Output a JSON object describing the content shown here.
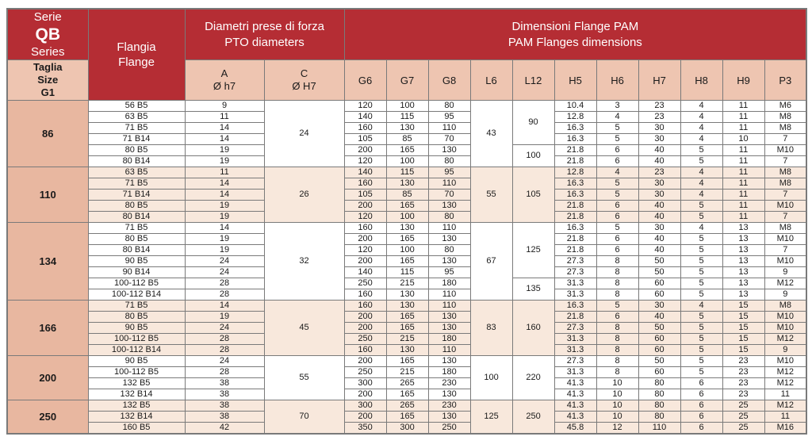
{
  "colors": {
    "red": "#b52d34",
    "pink_header": "#eec5b1",
    "pink_size": "#e8b7a0",
    "pink_row": "#f8e8dc",
    "border": "#7a7a7a",
    "text": "#1a1a1a"
  },
  "header": {
    "serie_label": "Serie",
    "serie_code": "QB",
    "series_label": "Series",
    "taglia_lines": [
      "Taglia",
      "Size",
      "G1"
    ],
    "flangia_lines": [
      "Flangia",
      "Flange"
    ],
    "pto_lines": [
      "Diametri prese di forza",
      "PTO diameters"
    ],
    "pam_lines": [
      "Dimensioni Flange PAM",
      "PAM Flanges dimensions"
    ],
    "col_a_lines": [
      "A",
      "Ø h7"
    ],
    "col_c_lines": [
      "C",
      "Ø H7"
    ],
    "dim_cols": [
      "G6",
      "G7",
      "G8",
      "L6",
      "L12",
      "H5",
      "H6",
      "H7",
      "H8",
      "H9",
      "P3"
    ]
  },
  "groups": [
    {
      "size": "86",
      "shaded": false,
      "c": "24",
      "l6": "43",
      "l12_spans": [
        {
          "value": "90",
          "rows": 4
        },
        {
          "value": "100",
          "rows": 2
        }
      ],
      "rows": [
        {
          "flange": "56 B5",
          "a": "9",
          "g6": "120",
          "g7": "100",
          "g8": "80",
          "h5": "10.4",
          "h6": "3",
          "h7": "23",
          "h8": "4",
          "h9": "11",
          "p3": "M6"
        },
        {
          "flange": "63 B5",
          "a": "11",
          "g6": "140",
          "g7": "115",
          "g8": "95",
          "h5": "12.8",
          "h6": "4",
          "h7": "23",
          "h8": "4",
          "h9": "11",
          "p3": "M8"
        },
        {
          "flange": "71 B5",
          "a": "14",
          "g6": "160",
          "g7": "130",
          "g8": "110",
          "h5": "16.3",
          "h6": "5",
          "h7": "30",
          "h8": "4",
          "h9": "11",
          "p3": "M8"
        },
        {
          "flange": "71 B14",
          "a": "14",
          "g6": "105",
          "g7": "85",
          "g8": "70",
          "h5": "16.3",
          "h6": "5",
          "h7": "30",
          "h8": "4",
          "h9": "10",
          "p3": "7"
        },
        {
          "flange": "80 B5",
          "a": "19",
          "g6": "200",
          "g7": "165",
          "g8": "130",
          "h5": "21.8",
          "h6": "6",
          "h7": "40",
          "h8": "5",
          "h9": "11",
          "p3": "M10"
        },
        {
          "flange": "80 B14",
          "a": "19",
          "g6": "120",
          "g7": "100",
          "g8": "80",
          "h5": "21.8",
          "h6": "6",
          "h7": "40",
          "h8": "5",
          "h9": "11",
          "p3": "7"
        }
      ]
    },
    {
      "size": "110",
      "shaded": true,
      "c": "26",
      "l6": "55",
      "l12_spans": [
        {
          "value": "105",
          "rows": 5
        }
      ],
      "rows": [
        {
          "flange": "63 B5",
          "a": "11",
          "g6": "140",
          "g7": "115",
          "g8": "95",
          "h5": "12.8",
          "h6": "4",
          "h7": "23",
          "h8": "4",
          "h9": "11",
          "p3": "M8"
        },
        {
          "flange": "71 B5",
          "a": "14",
          "g6": "160",
          "g7": "130",
          "g8": "110",
          "h5": "16.3",
          "h6": "5",
          "h7": "30",
          "h8": "4",
          "h9": "11",
          "p3": "M8"
        },
        {
          "flange": "71 B14",
          "a": "14",
          "g6": "105",
          "g7": "85",
          "g8": "70",
          "h5": "16.3",
          "h6": "5",
          "h7": "30",
          "h8": "4",
          "h9": "11",
          "p3": "7"
        },
        {
          "flange": "80 B5",
          "a": "19",
          "g6": "200",
          "g7": "165",
          "g8": "130",
          "h5": "21.8",
          "h6": "6",
          "h7": "40",
          "h8": "5",
          "h9": "11",
          "p3": "M10"
        },
        {
          "flange": "80 B14",
          "a": "19",
          "g6": "120",
          "g7": "100",
          "g8": "80",
          "h5": "21.8",
          "h6": "6",
          "h7": "40",
          "h8": "5",
          "h9": "11",
          "p3": "7"
        }
      ]
    },
    {
      "size": "134",
      "shaded": false,
      "c": "32",
      "l6": "67",
      "l12_spans": [
        {
          "value": "125",
          "rows": 5
        },
        {
          "value": "135",
          "rows": 2
        }
      ],
      "rows": [
        {
          "flange": "71 B5",
          "a": "14",
          "g6": "160",
          "g7": "130",
          "g8": "110",
          "h5": "16.3",
          "h6": "5",
          "h7": "30",
          "h8": "4",
          "h9": "13",
          "p3": "M8"
        },
        {
          "flange": "80 B5",
          "a": "19",
          "g6": "200",
          "g7": "165",
          "g8": "130",
          "h5": "21.8",
          "h6": "6",
          "h7": "40",
          "h8": "5",
          "h9": "13",
          "p3": "M10"
        },
        {
          "flange": "80 B14",
          "a": "19",
          "g6": "120",
          "g7": "100",
          "g8": "80",
          "h5": "21.8",
          "h6": "6",
          "h7": "40",
          "h8": "5",
          "h9": "13",
          "p3": "7"
        },
        {
          "flange": "90 B5",
          "a": "24",
          "g6": "200",
          "g7": "165",
          "g8": "130",
          "h5": "27.3",
          "h6": "8",
          "h7": "50",
          "h8": "5",
          "h9": "13",
          "p3": "M10"
        },
        {
          "flange": "90 B14",
          "a": "24",
          "g6": "140",
          "g7": "115",
          "g8": "95",
          "h5": "27.3",
          "h6": "8",
          "h7": "50",
          "h8": "5",
          "h9": "13",
          "p3": "9"
        },
        {
          "flange": "100-112 B5",
          "a": "28",
          "g6": "250",
          "g7": "215",
          "g8": "180",
          "h5": "31.3",
          "h6": "8",
          "h7": "60",
          "h8": "5",
          "h9": "13",
          "p3": "M12"
        },
        {
          "flange": "100-112 B14",
          "a": "28",
          "g6": "160",
          "g7": "130",
          "g8": "110",
          "h5": "31.3",
          "h6": "8",
          "h7": "60",
          "h8": "5",
          "h9": "13",
          "p3": "9"
        }
      ]
    },
    {
      "size": "166",
      "shaded": true,
      "c": "45",
      "l6": "83",
      "l12_spans": [
        {
          "value": "160",
          "rows": 5
        }
      ],
      "rows": [
        {
          "flange": "71 B5",
          "a": "14",
          "g6": "160",
          "g7": "130",
          "g8": "110",
          "h5": "16.3",
          "h6": "5",
          "h7": "30",
          "h8": "4",
          "h9": "15",
          "p3": "M8"
        },
        {
          "flange": "80 B5",
          "a": "19",
          "g6": "200",
          "g7": "165",
          "g8": "130",
          "h5": "21.8",
          "h6": "6",
          "h7": "40",
          "h8": "5",
          "h9": "15",
          "p3": "M10"
        },
        {
          "flange": "90 B5",
          "a": "24",
          "g6": "200",
          "g7": "165",
          "g8": "130",
          "h5": "27.3",
          "h6": "8",
          "h7": "50",
          "h8": "5",
          "h9": "15",
          "p3": "M10"
        },
        {
          "flange": "100-112 B5",
          "a": "28",
          "g6": "250",
          "g7": "215",
          "g8": "180",
          "h5": "31.3",
          "h6": "8",
          "h7": "60",
          "h8": "5",
          "h9": "15",
          "p3": "M12"
        },
        {
          "flange": "100-112 B14",
          "a": "28",
          "g6": "160",
          "g7": "130",
          "g8": "110",
          "h5": "31.3",
          "h6": "8",
          "h7": "60",
          "h8": "5",
          "h9": "15",
          "p3": "9"
        }
      ]
    },
    {
      "size": "200",
      "shaded": false,
      "c": "55",
      "l6": "100",
      "l12_spans": [
        {
          "value": "220",
          "rows": 4
        }
      ],
      "rows": [
        {
          "flange": "90 B5",
          "a": "24",
          "g6": "200",
          "g7": "165",
          "g8": "130",
          "h5": "27.3",
          "h6": "8",
          "h7": "50",
          "h8": "5",
          "h9": "23",
          "p3": "M10"
        },
        {
          "flange": "100-112 B5",
          "a": "28",
          "g6": "250",
          "g7": "215",
          "g8": "180",
          "h5": "31.3",
          "h6": "8",
          "h7": "60",
          "h8": "5",
          "h9": "23",
          "p3": "M12"
        },
        {
          "flange": "132 B5",
          "a": "38",
          "g6": "300",
          "g7": "265",
          "g8": "230",
          "h5": "41.3",
          "h6": "10",
          "h7": "80",
          "h8": "6",
          "h9": "23",
          "p3": "M12"
        },
        {
          "flange": "132 B14",
          "a": "38",
          "g6": "200",
          "g7": "165",
          "g8": "130",
          "h5": "41.3",
          "h6": "10",
          "h7": "80",
          "h8": "6",
          "h9": "23",
          "p3": "11"
        }
      ]
    },
    {
      "size": "250",
      "shaded": true,
      "c": "70",
      "l6": "125",
      "l12_spans": [
        {
          "value": "250",
          "rows": 3
        }
      ],
      "rows": [
        {
          "flange": "132 B5",
          "a": "38",
          "g6": "300",
          "g7": "265",
          "g8": "230",
          "h5": "41.3",
          "h6": "10",
          "h7": "80",
          "h8": "6",
          "h9": "25",
          "p3": "M12"
        },
        {
          "flange": "132 B14",
          "a": "38",
          "g6": "200",
          "g7": "165",
          "g8": "130",
          "h5": "41.3",
          "h6": "10",
          "h7": "80",
          "h8": "6",
          "h9": "25",
          "p3": "11"
        },
        {
          "flange": "160 B5",
          "a": "42",
          "g6": "350",
          "g7": "300",
          "g8": "250",
          "h5": "45.8",
          "h6": "12",
          "h7": "110",
          "h8": "6",
          "h9": "25",
          "p3": "M16"
        }
      ]
    }
  ]
}
